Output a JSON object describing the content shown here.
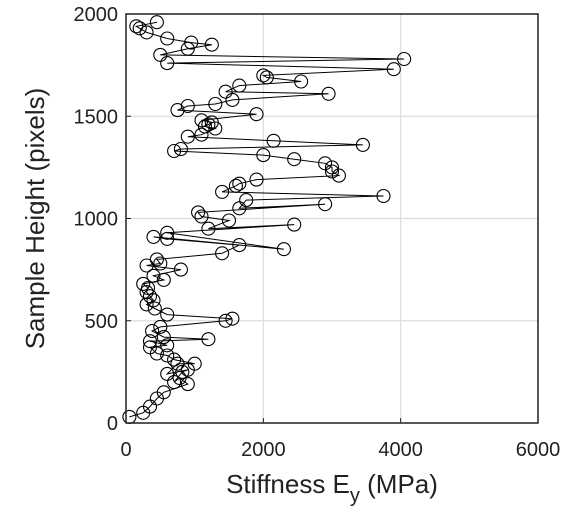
{
  "chart_data": {
    "type": "line",
    "title": "",
    "xlabel_main": "Stiffness E",
    "xlabel_sub": "y",
    "xlabel_unit": " (MPa)",
    "ylabel": "Sample Height (pixels)",
    "xlim": [
      0,
      6000
    ],
    "ylim": [
      0,
      2000
    ],
    "xticks": [
      "0",
      "2000",
      "4000",
      "6000"
    ],
    "yticks": [
      "0",
      "500",
      "1000",
      "1500",
      "2000"
    ],
    "grid": true,
    "marker": "open-circle",
    "line_color": "#000000",
    "series": [
      {
        "points": [
          [
            50,
            30
          ],
          [
            250,
            50
          ],
          [
            350,
            80
          ],
          [
            450,
            120
          ],
          [
            550,
            150
          ],
          [
            900,
            190
          ],
          [
            780,
            220
          ],
          [
            700,
            200
          ],
          [
            820,
            250
          ],
          [
            900,
            260
          ],
          [
            600,
            240
          ],
          [
            750,
            290
          ],
          [
            1000,
            290
          ],
          [
            700,
            310
          ],
          [
            600,
            330
          ],
          [
            450,
            340
          ],
          [
            350,
            370
          ],
          [
            600,
            380
          ],
          [
            350,
            400
          ],
          [
            1200,
            410
          ],
          [
            550,
            420
          ],
          [
            380,
            450
          ],
          [
            500,
            470
          ],
          [
            1450,
            500
          ],
          [
            1550,
            510
          ],
          [
            600,
            530
          ],
          [
            420,
            560
          ],
          [
            300,
            580
          ],
          [
            400,
            600
          ],
          [
            350,
            620
          ],
          [
            300,
            640
          ],
          [
            320,
            660
          ],
          [
            250,
            680
          ],
          [
            550,
            700
          ],
          [
            400,
            720
          ],
          [
            800,
            750
          ],
          [
            300,
            770
          ],
          [
            500,
            780
          ],
          [
            450,
            800
          ],
          [
            1400,
            830
          ],
          [
            1650,
            870
          ],
          [
            600,
            900
          ],
          [
            400,
            910
          ],
          [
            2300,
            850
          ],
          [
            600,
            930
          ],
          [
            2450,
            970
          ],
          [
            1200,
            950
          ],
          [
            1500,
            990
          ],
          [
            1100,
            1010
          ],
          [
            1050,
            1030
          ],
          [
            2900,
            1070
          ],
          [
            1650,
            1050
          ],
          [
            1750,
            1090
          ],
          [
            3750,
            1110
          ],
          [
            1400,
            1130
          ],
          [
            1600,
            1160
          ],
          [
            1650,
            1170
          ],
          [
            1900,
            1190
          ],
          [
            3100,
            1210
          ],
          [
            3000,
            1230
          ],
          [
            3000,
            1250
          ],
          [
            2900,
            1270
          ],
          [
            2450,
            1290
          ],
          [
            2000,
            1310
          ],
          [
            700,
            1330
          ],
          [
            800,
            1340
          ],
          [
            3450,
            1360
          ],
          [
            2150,
            1380
          ],
          [
            900,
            1400
          ],
          [
            1100,
            1410
          ],
          [
            1300,
            1440
          ],
          [
            1150,
            1450
          ],
          [
            1200,
            1460
          ],
          [
            1250,
            1470
          ],
          [
            1100,
            1480
          ],
          [
            1900,
            1510
          ],
          [
            750,
            1530
          ],
          [
            900,
            1550
          ],
          [
            1300,
            1560
          ],
          [
            1550,
            1580
          ],
          [
            2950,
            1610
          ],
          [
            1450,
            1620
          ],
          [
            1650,
            1650
          ],
          [
            2550,
            1670
          ],
          [
            2050,
            1690
          ],
          [
            2000,
            1700
          ],
          [
            3900,
            1730
          ],
          [
            600,
            1760
          ],
          [
            4050,
            1780
          ],
          [
            500,
            1800
          ],
          [
            900,
            1830
          ],
          [
            1250,
            1850
          ],
          [
            950,
            1860
          ],
          [
            600,
            1880
          ],
          [
            300,
            1910
          ],
          [
            200,
            1930
          ],
          [
            150,
            1940
          ],
          [
            450,
            1960
          ]
        ]
      }
    ]
  }
}
